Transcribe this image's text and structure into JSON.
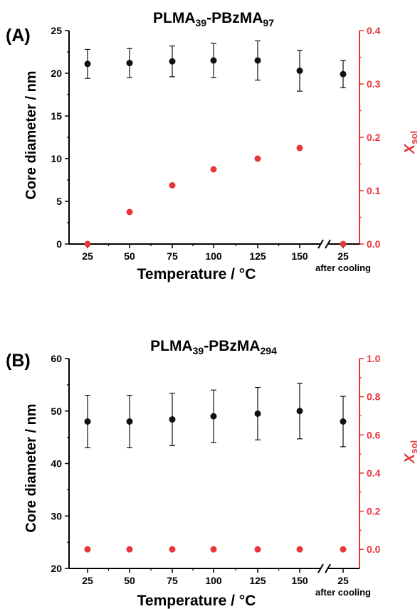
{
  "chart_data": [
    {
      "type": "scatter",
      "panel_label": "(A)",
      "title_main": "PLMA",
      "title_sub1": "39",
      "title_mid": "-PBzMA",
      "title_sub2": "97",
      "xlabel": "Temperature / °C",
      "ylabel": "Core diameter / nm",
      "y2label_main": "X",
      "y2label_sub": "sol",
      "categories": [
        "25",
        "50",
        "75",
        "100",
        "125",
        "150",
        "25"
      ],
      "after_label": "after cooling",
      "ylim": [
        0,
        25
      ],
      "yticks": [
        "0",
        "5",
        "10",
        "15",
        "20",
        "25"
      ],
      "y2lim": [
        0,
        0.4
      ],
      "y2ticks": [
        "0.0",
        "0.1",
        "0.2",
        "0.3",
        "0.4"
      ],
      "axis_break": true,
      "colors": {
        "diameter": "#111111",
        "xsol": "#e8363a"
      },
      "series": [
        {
          "values": [
            21.1,
            21.2,
            21.4,
            21.5,
            21.5,
            20.3,
            19.9
          ],
          "errors": [
            1.7,
            1.7,
            1.8,
            2.0,
            2.3,
            2.4,
            1.6
          ],
          "axis": "left"
        },
        {
          "values": [
            0.0,
            0.06,
            0.11,
            0.14,
            0.16,
            0.18,
            0.0
          ],
          "axis": "right"
        }
      ]
    },
    {
      "type": "scatter",
      "panel_label": "(B)",
      "title_main": "PLMA",
      "title_sub1": "39",
      "title_mid": "-PBzMA",
      "title_sub2": "294",
      "xlabel": "Temperature / °C",
      "ylabel": "Core diameter / nm",
      "y2label_main": "X",
      "y2label_sub": "sol",
      "categories": [
        "25",
        "50",
        "75",
        "100",
        "125",
        "150",
        "25"
      ],
      "after_label": "after cooling",
      "ylim": [
        20,
        60
      ],
      "yticks": [
        "20",
        "30",
        "40",
        "50",
        "60"
      ],
      "y2lim": [
        -0.1,
        1.0
      ],
      "y2ticks": [
        "0.0",
        "0.2",
        "0.4",
        "0.6",
        "0.8",
        "1.0"
      ],
      "axis_break": true,
      "colors": {
        "diameter": "#111111",
        "xsol": "#e8363a"
      },
      "series": [
        {
          "values": [
            48.0,
            48.0,
            48.4,
            49.0,
            49.5,
            50.0,
            48.0
          ],
          "errors": [
            5.0,
            5.0,
            5.0,
            5.0,
            5.0,
            5.3,
            4.8
          ],
          "axis": "left"
        },
        {
          "values": [
            0.0,
            0.0,
            0.0,
            0.0,
            0.0,
            0.0,
            0.0
          ],
          "axis": "right"
        }
      ]
    }
  ]
}
